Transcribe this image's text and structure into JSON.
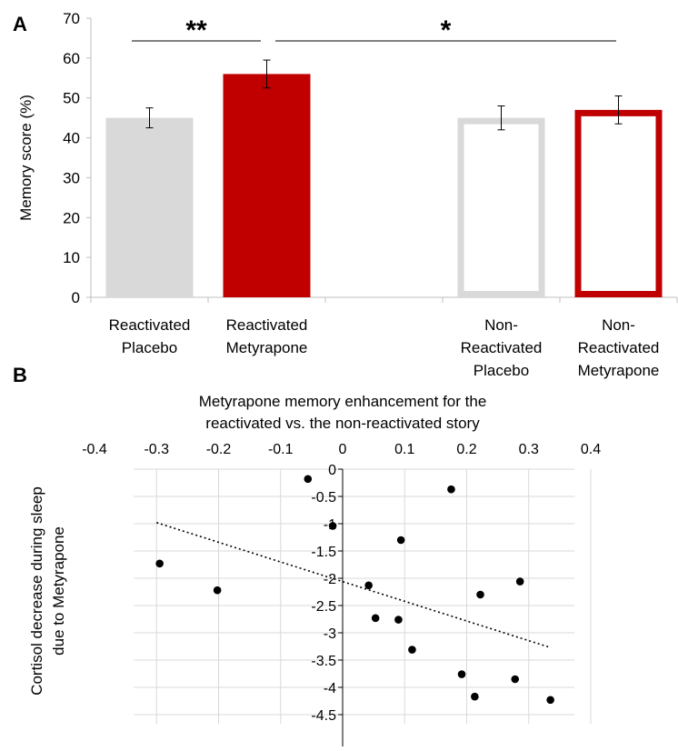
{
  "panel_a_letter": "A",
  "panel_b_letter": "B",
  "chart_data": [
    {
      "type": "bar",
      "panel": "A",
      "ylabel": "Memory score (%)",
      "ylim": [
        0,
        70
      ],
      "yticks": [
        0,
        10,
        20,
        30,
        40,
        50,
        60,
        70
      ],
      "grid": false,
      "bars": [
        {
          "label": [
            "Reactivated",
            "Placebo"
          ],
          "value": 45,
          "error": 2.5,
          "fill": "#d9d9d9",
          "style": "filled"
        },
        {
          "label": [
            "Reactivated",
            "Metyrapone"
          ],
          "value": 56,
          "error": 3.5,
          "fill": "#c00000",
          "style": "filled"
        },
        {
          "label": [],
          "value": null,
          "error": null,
          "fill": "",
          "style": "empty"
        },
        {
          "label": [
            "Non-",
            "Reactivated",
            "Placebo"
          ],
          "value": 45,
          "error": 3.0,
          "fill": "#d9d9d9",
          "style": "outline"
        },
        {
          "label": [
            "Non-",
            "Reactivated",
            "Metyrapone"
          ],
          "value": 47,
          "error": 3.5,
          "fill": "#c00000",
          "style": "outline"
        }
      ],
      "significance": [
        {
          "text": "**",
          "from_bar": 0,
          "to_bar": 1
        },
        {
          "text": "*",
          "from_bar": 1,
          "to_bar": 4
        }
      ]
    },
    {
      "type": "scatter",
      "panel": "B",
      "title": [
        "Metyrapone memory enhancement for the",
        "reactivated vs. the non-reactivated story"
      ],
      "ylabel": [
        "Cortisol decrease during sleep",
        "due to Metyrapone"
      ],
      "xlim": [
        -0.4,
        0.4
      ],
      "ylim": [
        -4.5,
        0
      ],
      "xticks": [
        -0.4,
        -0.3,
        -0.2,
        -0.1,
        0,
        0.1,
        0.2,
        0.3,
        0.4
      ],
      "xtick_labels": [
        "-0.4",
        "-0.3",
        "-0.2",
        "-0.1",
        "0",
        "0.1",
        "0.2",
        "0.3",
        "0.4"
      ],
      "yticks": [
        0,
        -0.5,
        -1,
        -1.5,
        -2,
        -2.5,
        -3,
        -3.5,
        -4,
        -4.5
      ],
      "ytick_labels": [
        "0",
        "-0.5",
        "-1",
        "-1.5",
        "-2",
        "-2.5",
        "-3",
        "-3.5",
        "-4",
        "-4.5"
      ],
      "grid": true,
      "points": [
        {
          "x": -0.295,
          "y": -1.73
        },
        {
          "x": -0.202,
          "y": -2.22
        },
        {
          "x": -0.056,
          "y": -0.18
        },
        {
          "x": -0.016,
          "y": -1.04
        },
        {
          "x": 0.042,
          "y": -2.13
        },
        {
          "x": 0.053,
          "y": -2.73
        },
        {
          "x": 0.09,
          "y": -2.76
        },
        {
          "x": 0.094,
          "y": -1.3
        },
        {
          "x": 0.112,
          "y": -3.31
        },
        {
          "x": 0.175,
          "y": -0.37
        },
        {
          "x": 0.192,
          "y": -3.76
        },
        {
          "x": 0.213,
          "y": -4.17
        },
        {
          "x": 0.222,
          "y": -2.3
        },
        {
          "x": 0.278,
          "y": -3.85
        },
        {
          "x": 0.286,
          "y": -2.06
        },
        {
          "x": 0.335,
          "y": -4.23
        }
      ],
      "trendline": {
        "style": "dotted",
        "x": [
          -0.3,
          0.335
        ],
        "y": [
          -0.98,
          -3.27
        ]
      }
    }
  ]
}
